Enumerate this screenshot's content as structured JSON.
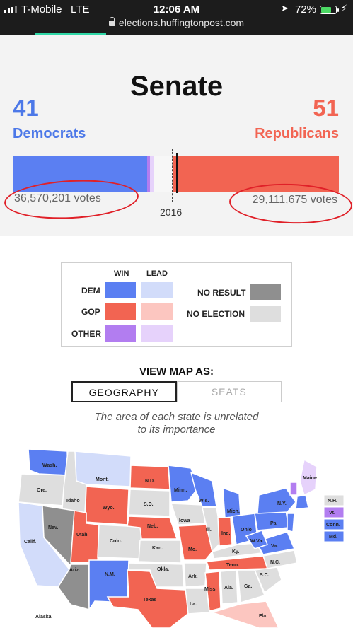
{
  "status_bar": {
    "carrier": "T-Mobile",
    "network": "LTE",
    "time": "12:06 AM",
    "battery": "72%",
    "url": "elections.huffingtonpost.com",
    "battery_level": 0.72
  },
  "senate": {
    "title": "Senate",
    "dem_count": "41",
    "dem_label": "Democrats",
    "rep_count": "51",
    "rep_label": "Republicans",
    "dem_votes": "36,570,201 votes",
    "rep_votes": "29,111,675 votes",
    "year_marker": "2016",
    "seat_bar": {
      "dem_win": 41,
      "dem_lead": 0,
      "other_win": 1,
      "other_lead": 1,
      "no_result": 0,
      "no_election": 6,
      "rep_lead": 0,
      "rep_win": 51
    }
  },
  "legend": {
    "win_header": "WIN",
    "lead_header": "LEAD",
    "dem": "DEM",
    "gop": "GOP",
    "other": "OTHER",
    "no_result": "NO RESULT",
    "no_election": "NO ELECTION"
  },
  "view": {
    "title": "VIEW MAP AS:",
    "option_geography": "GEOGRAPHY",
    "option_seats": "SEATS",
    "caption_line1": "The area of each state is unrelated",
    "caption_line2": "to its importance"
  },
  "colors": {
    "dem_win": "#5b7ff2",
    "dem_lead": "#d2dcfa",
    "gop_win": "#f26452",
    "gop_lead": "#fcc6c0",
    "other_win": "#b27df0",
    "other_lead": "#e6d2fb",
    "no_result": "#8f8f8f",
    "no_election": "#dedede"
  },
  "map_labels": {
    "wash": "Wash.",
    "ore": "Ore.",
    "calif": "Calif.",
    "idaho": "Idaho",
    "nev": "Nev.",
    "mont": "Mont.",
    "wyo": "Wyo.",
    "utah": "Utah",
    "ariz": "Ariz.",
    "colo": "Colo.",
    "nm": "N.M.",
    "nd": "N.D.",
    "sd": "S.D.",
    "neb": "Neb.",
    "kan": "Kan.",
    "okla": "Okla.",
    "texas": "Texas",
    "minn": "Minn.",
    "iowa": "Iowa",
    "mo": "Mo.",
    "ark": "Ark.",
    "la": "La.",
    "wis": "Wis.",
    "ill": "Ill.",
    "mich": "Mich.",
    "ind": "Ind.",
    "ohio": "Ohio",
    "ky": "Ky.",
    "tenn": "Tenn.",
    "miss": "Miss.",
    "ala": "Ala.",
    "ga": "Ga.",
    "fla": "Fla.",
    "sc": "S.C.",
    "nc": "N.C.",
    "va": "Va.",
    "wva": "W.Va.",
    "pa": "Pa.",
    "ny": "N.Y.",
    "maine": "Maine",
    "nh": "N.H.",
    "vt": "Vt.",
    "conn": "Conn.",
    "md": "Md.",
    "alaska": "Alaska"
  }
}
